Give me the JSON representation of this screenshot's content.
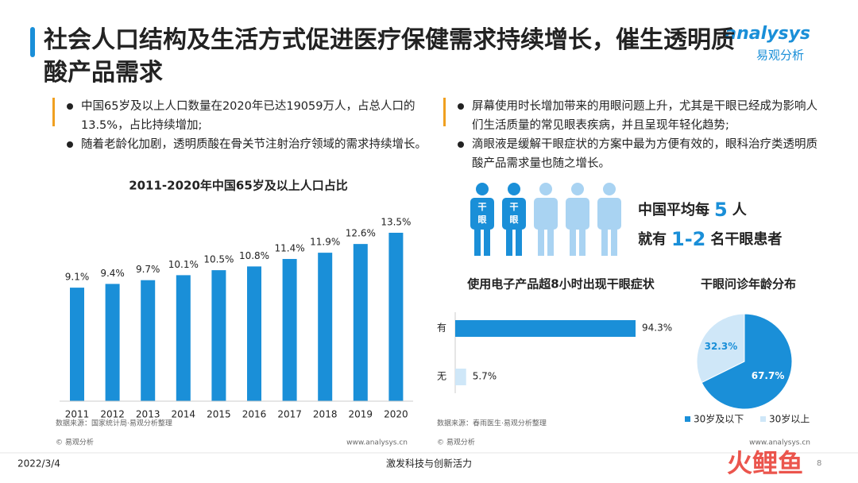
{
  "header": {
    "title": "社会人口结构及生活方式促进医疗保健需求持续增长，催生透明质酸产品需求",
    "logo": "analysys",
    "logo_cn": "易观分析"
  },
  "left_bullets": [
    "中国65岁及以上人口数量在2020年已达19059万人，占总人口的13.5%，占比持续增加;",
    "随着老龄化加剧，透明质酸在骨关节注射治疗领域的需求持续增长。"
  ],
  "right_bullets": [
    "屏幕使用时长增加带来的用眼问题上升，尤其是干眼已经成为影响人们生活质量的常见眼表疾病，并且呈现年轻化趋势;",
    "滴眼液是缓解干眼症状的方案中最为方便有效的，眼科治疗类透明质酸产品需求量也随之增长。"
  ],
  "infographic": {
    "icon_label": [
      "干",
      "眼"
    ],
    "line1": [
      "中国平均每",
      "5",
      "人"
    ],
    "line2": [
      "就有",
      "1-2",
      "名干眼患者"
    ]
  },
  "chart_data": [
    {
      "type": "bar",
      "title": "2011-2020年中国65岁及以上人口占比",
      "color": "#1a8fd8",
      "categories": [
        "2011",
        "2012",
        "2013",
        "2014",
        "2015",
        "2016",
        "2017",
        "2018",
        "2019",
        "2020"
      ],
      "values": [
        9.1,
        9.4,
        9.7,
        10.1,
        10.5,
        10.8,
        11.4,
        11.9,
        12.6,
        13.5
      ],
      "value_labels": [
        "9.1%",
        "9.4%",
        "9.7%",
        "10.1%",
        "10.5%",
        "10.8%",
        "11.4%",
        "11.9%",
        "12.6%",
        "13.5%"
      ]
    },
    {
      "type": "hbar",
      "title": "使用电子产品超8小时出现干眼症状",
      "categories": [
        "有",
        "无"
      ],
      "values": [
        94.3,
        5.7
      ],
      "value_labels": [
        "94.3%",
        "5.7%"
      ],
      "colors": [
        "#1a8fd8",
        "#cfe7f8"
      ]
    },
    {
      "type": "pie",
      "title": "干眼问诊年龄分布",
      "categories": [
        "30岁及以下",
        "30岁以上"
      ],
      "values": [
        67.7,
        32.3
      ],
      "value_labels": [
        "67.7%",
        "32.3%"
      ],
      "colors": [
        "#1a8fd8",
        "#cfe7f8"
      ],
      "legend": "bottom"
    }
  ],
  "sources": [
    "数据来源：国家统计局·易观分析整理",
    "数据来源：春雨医生·易观分析整理"
  ],
  "copyright": [
    "© 易观分析",
    "© 易观分析"
  ],
  "site": [
    "www.analysys.cn",
    "www.analysys.cn"
  ],
  "footer": {
    "date": "2022/3/4",
    "slogan": "激发科技与创新活力",
    "page": "8",
    "watermark": "火鲤鱼"
  }
}
